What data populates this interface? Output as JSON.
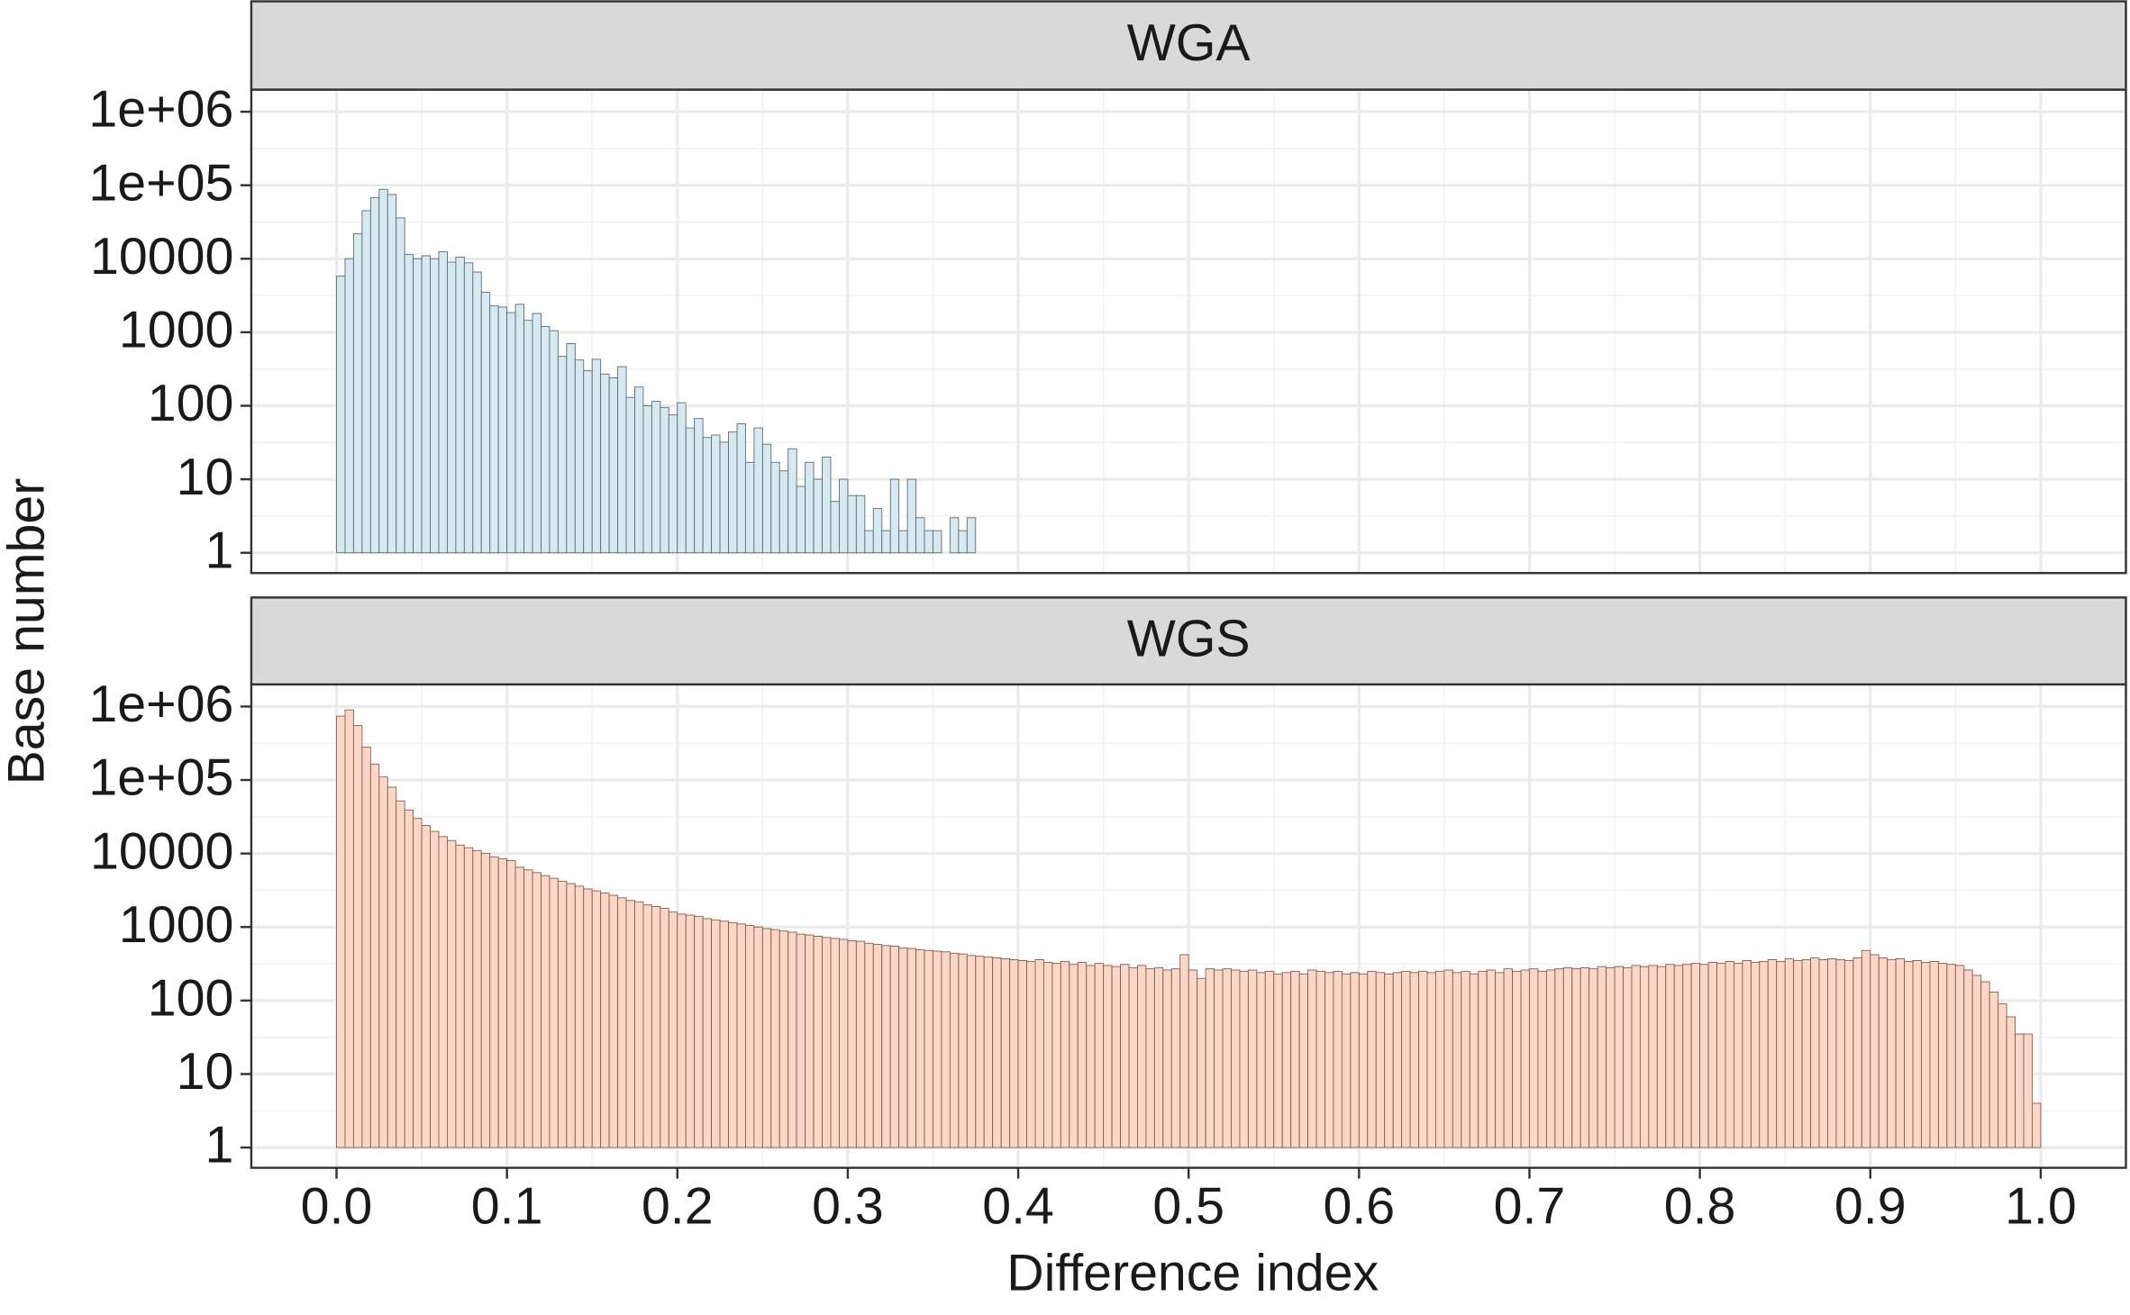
{
  "chart_data": [
    {
      "type": "histogram",
      "title": "WGA",
      "color": "#d6e9f1",
      "edgecolor": "#5f6b73",
      "log_y": true,
      "grid": true,
      "ylim": [
        0.53,
        2000000
      ],
      "yticks": [
        1,
        10,
        100,
        1000,
        10000,
        {
          "value": 100000,
          "label": "1e+05"
        },
        {
          "value": 1000000,
          "label": "1e+06"
        }
      ],
      "values": [
        5800,
        10000,
        22000,
        45000,
        68000,
        88000,
        75000,
        36000,
        11500,
        10000,
        11000,
        10000,
        12500,
        9000,
        10500,
        8800,
        6600,
        3500,
        2300,
        2200,
        1850,
        2400,
        1450,
        1800,
        1200,
        1050,
        470,
        700,
        420,
        300,
        430,
        270,
        240,
        340,
        130,
        180,
        100,
        115,
        95,
        75,
        110,
        50,
        67,
        37,
        40,
        32,
        44,
        57,
        17,
        50,
        30,
        17,
        13,
        26,
        8,
        17,
        10,
        20,
        5,
        10,
        6,
        6,
        2,
        4,
        2,
        10,
        2,
        10,
        3,
        2,
        2,
        0,
        3,
        2,
        3,
        0,
        0,
        0,
        0,
        1,
        0,
        0,
        0,
        1,
        0,
        0,
        0,
        0,
        0,
        0,
        0,
        0,
        0,
        0,
        0,
        0,
        0,
        0,
        0,
        0,
        0,
        0,
        0,
        1,
        0,
        0,
        0,
        0,
        0,
        0,
        0,
        0,
        0,
        0,
        0,
        0,
        0,
        0,
        0,
        0,
        0,
        0,
        0,
        0,
        0,
        0,
        0,
        0,
        0,
        0,
        0,
        0,
        0,
        0,
        0,
        0,
        0,
        0,
        0,
        0,
        0,
        1,
        0,
        0,
        0,
        0,
        0,
        0,
        0,
        0,
        0,
        0,
        0,
        0,
        0,
        0,
        0,
        0,
        0,
        0,
        0,
        0,
        0,
        0,
        0,
        0,
        0,
        0,
        0,
        0,
        0,
        0,
        0,
        0,
        0,
        0,
        0,
        0,
        0,
        0,
        0,
        0,
        0,
        0,
        0,
        0,
        0,
        0,
        0,
        0,
        0,
        0,
        0,
        0,
        0,
        0,
        0,
        0,
        0,
        0
      ]
    },
    {
      "type": "histogram",
      "title": "WGS",
      "color": "#fdd6c6",
      "edgecolor": "#7d6058",
      "log_y": true,
      "grid": true,
      "ylim": [
        0.53,
        2000000
      ],
      "yticks": [
        1,
        10,
        100,
        1000,
        10000,
        {
          "value": 100000,
          "label": "1e+05"
        },
        {
          "value": 1000000,
          "label": "1e+06"
        }
      ],
      "values": [
        740000,
        900000,
        550000,
        280000,
        165000,
        110000,
        80000,
        52000,
        39000,
        30000,
        24000,
        20000,
        17000,
        15000,
        13000,
        12000,
        11000,
        10000,
        9000,
        8500,
        8000,
        6500,
        6000,
        5500,
        5000,
        4600,
        4200,
        3900,
        3600,
        3300,
        3100,
        2900,
        2700,
        2500,
        2300,
        2200,
        2000,
        1900,
        1800,
        1600,
        1500,
        1450,
        1400,
        1300,
        1250,
        1200,
        1150,
        1100,
        1050,
        1000,
        950,
        920,
        880,
        850,
        800,
        780,
        750,
        720,
        700,
        680,
        650,
        640,
        600,
        580,
        560,
        550,
        520,
        510,
        490,
        480,
        470,
        460,
        440,
        430,
        410,
        400,
        390,
        380,
        370,
        360,
        350,
        340,
        360,
        330,
        320,
        340,
        310,
        330,
        300,
        320,
        300,
        290,
        310,
        280,
        300,
        270,
        280,
        260,
        270,
        420,
        260,
        200,
        270,
        260,
        270,
        260,
        250,
        260,
        240,
        250,
        230,
        240,
        250,
        230,
        260,
        250,
        240,
        250,
        230,
        240,
        230,
        250,
        240,
        230,
        240,
        250,
        240,
        250,
        240,
        250,
        260,
        240,
        250,
        230,
        250,
        260,
        240,
        270,
        250,
        260,
        270,
        250,
        260,
        270,
        280,
        270,
        280,
        270,
        290,
        280,
        290,
        280,
        300,
        290,
        300,
        290,
        310,
        300,
        310,
        320,
        310,
        330,
        320,
        340,
        320,
        350,
        330,
        340,
        360,
        340,
        370,
        350,
        360,
        380,
        360,
        370,
        360,
        350,
        380,
        480,
        420,
        380,
        360,
        370,
        340,
        350,
        330,
        340,
        320,
        310,
        300,
        260,
        220,
        180,
        130,
        90,
        60,
        35,
        35,
        4
      ]
    }
  ],
  "bins": [
    0,
    0.005,
    0.01,
    0.015,
    0.02,
    0.025,
    0.03,
    0.035,
    0.04,
    0.045,
    0.05,
    0.055,
    0.06,
    0.065,
    0.07,
    0.075,
    0.08,
    0.085,
    0.09,
    0.095,
    0.1,
    0.105,
    0.11,
    0.115,
    0.12,
    0.125,
    0.13,
    0.135,
    0.14,
    0.145,
    0.15,
    0.155,
    0.16,
    0.165,
    0.17,
    0.175,
    0.18,
    0.185,
    0.19,
    0.195,
    0.2,
    0.205,
    0.21,
    0.215,
    0.22,
    0.225,
    0.23,
    0.235,
    0.24,
    0.245,
    0.25,
    0.255,
    0.26,
    0.265,
    0.27,
    0.275,
    0.28,
    0.285,
    0.29,
    0.295,
    0.3,
    0.305,
    0.31,
    0.315,
    0.32,
    0.325,
    0.33,
    0.335,
    0.34,
    0.345,
    0.35,
    0.355,
    0.36,
    0.365,
    0.37,
    0.375,
    0.38,
    0.385,
    0.39,
    0.395,
    0.4,
    0.405,
    0.41,
    0.415,
    0.42,
    0.425,
    0.43,
    0.435,
    0.44,
    0.445,
    0.45,
    0.455,
    0.46,
    0.465,
    0.47,
    0.475,
    0.48,
    0.485,
    0.49,
    0.495,
    0.5,
    0.505,
    0.51,
    0.515,
    0.52,
    0.525,
    0.53,
    0.535,
    0.54,
    0.545,
    0.55,
    0.555,
    0.56,
    0.565,
    0.57,
    0.575,
    0.58,
    0.585,
    0.59,
    0.595,
    0.6,
    0.605,
    0.61,
    0.615,
    0.62,
    0.625,
    0.63,
    0.635,
    0.64,
    0.645,
    0.65,
    0.655,
    0.66,
    0.665,
    0.67,
    0.675,
    0.68,
    0.685,
    0.69,
    0.695,
    0.7,
    0.705,
    0.71,
    0.715,
    0.72,
    0.725,
    0.73,
    0.735,
    0.74,
    0.745,
    0.75,
    0.755,
    0.76,
    0.765,
    0.77,
    0.775,
    0.78,
    0.785,
    0.79,
    0.795,
    0.8,
    0.805,
    0.81,
    0.815,
    0.82,
    0.825,
    0.83,
    0.835,
    0.84,
    0.845,
    0.85,
    0.855,
    0.86,
    0.865,
    0.87,
    0.875,
    0.88,
    0.885,
    0.89,
    0.895,
    0.9,
    0.905,
    0.91,
    0.915,
    0.92,
    0.925,
    0.93,
    0.935,
    0.94,
    0.945,
    0.95,
    0.955,
    0.96,
    0.965,
    0.97,
    0.975,
    0.98,
    0.985,
    0.99,
    0.995,
    1
  ],
  "xlim": [
    -0.05,
    1.05
  ],
  "xticks": [
    {
      "value": 0,
      "label": "0.0"
    },
    0.1,
    0.2,
    0.3,
    0.4,
    0.5,
    0.6,
    0.7,
    0.8,
    0.9,
    {
      "value": 1,
      "label": "1.0"
    }
  ],
  "xlabel": "Difference index",
  "ylabel": "Base number"
}
